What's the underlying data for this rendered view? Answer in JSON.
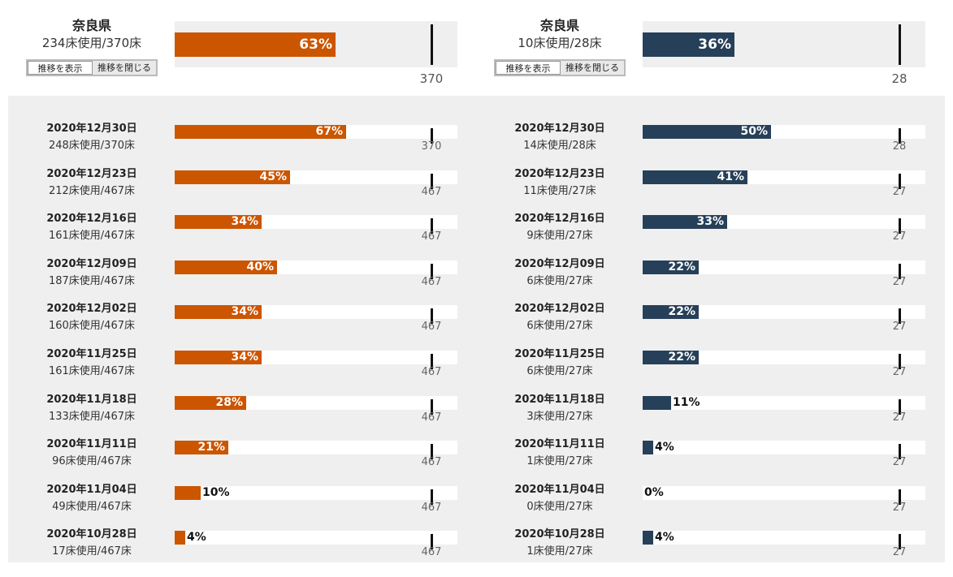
{
  "buttons": {
    "show": "推移を表示",
    "close": "推移を閉じる"
  },
  "chart_data": [
    {
      "type": "bar",
      "color": "#cc5500",
      "current": {
        "name": "奈良県",
        "count_text": "234床使用/370床",
        "percent": 63,
        "percent_label": "63%",
        "max_label": "370"
      },
      "history": [
        {
          "date": "2020年12月30日",
          "count_text": "248床使用/370床",
          "percent": 67,
          "percent_label": "67%",
          "max_label": "370"
        },
        {
          "date": "2020年12月23日",
          "count_text": "212床使用/467床",
          "percent": 45,
          "percent_label": "45%",
          "max_label": "467"
        },
        {
          "date": "2020年12月16日",
          "count_text": "161床使用/467床",
          "percent": 34,
          "percent_label": "34%",
          "max_label": "467"
        },
        {
          "date": "2020年12月09日",
          "count_text": "187床使用/467床",
          "percent": 40,
          "percent_label": "40%",
          "max_label": "467"
        },
        {
          "date": "2020年12月02日",
          "count_text": "160床使用/467床",
          "percent": 34,
          "percent_label": "34%",
          "max_label": "467"
        },
        {
          "date": "2020年11月25日",
          "count_text": "161床使用/467床",
          "percent": 34,
          "percent_label": "34%",
          "max_label": "467"
        },
        {
          "date": "2020年11月18日",
          "count_text": "133床使用/467床",
          "percent": 28,
          "percent_label": "28%",
          "max_label": "467"
        },
        {
          "date": "2020年11月11日",
          "count_text": "96床使用/467床",
          "percent": 21,
          "percent_label": "21%",
          "max_label": "467"
        },
        {
          "date": "2020年11月04日",
          "count_text": "49床使用/467床",
          "percent": 10,
          "percent_label": "10%",
          "max_label": "467"
        },
        {
          "date": "2020年10月28日",
          "count_text": "17床使用/467床",
          "percent": 4,
          "percent_label": "4%",
          "max_label": "467"
        }
      ]
    },
    {
      "type": "bar",
      "color": "#274059",
      "current": {
        "name": "奈良県",
        "count_text": "10床使用/28床",
        "percent": 36,
        "percent_label": "36%",
        "max_label": "28"
      },
      "history": [
        {
          "date": "2020年12月30日",
          "count_text": "14床使用/28床",
          "percent": 50,
          "percent_label": "50%",
          "max_label": "28"
        },
        {
          "date": "2020年12月23日",
          "count_text": "11床使用/27床",
          "percent": 41,
          "percent_label": "41%",
          "max_label": "27"
        },
        {
          "date": "2020年12月16日",
          "count_text": "9床使用/27床",
          "percent": 33,
          "percent_label": "33%",
          "max_label": "27"
        },
        {
          "date": "2020年12月09日",
          "count_text": "6床使用/27床",
          "percent": 22,
          "percent_label": "22%",
          "max_label": "27"
        },
        {
          "date": "2020年12月02日",
          "count_text": "6床使用/27床",
          "percent": 22,
          "percent_label": "22%",
          "max_label": "27"
        },
        {
          "date": "2020年11月25日",
          "count_text": "6床使用/27床",
          "percent": 22,
          "percent_label": "22%",
          "max_label": "27"
        },
        {
          "date": "2020年11月18日",
          "count_text": "3床使用/27床",
          "percent": 11,
          "percent_label": "11%",
          "max_label": "27"
        },
        {
          "date": "2020年11月11日",
          "count_text": "1床使用/27床",
          "percent": 4,
          "percent_label": "4%",
          "max_label": "27"
        },
        {
          "date": "2020年11月04日",
          "count_text": "0床使用/27床",
          "percent": 0,
          "percent_label": "0%",
          "max_label": "27"
        },
        {
          "date": "2020年10月28日",
          "count_text": "1床使用/27床",
          "percent": 4,
          "percent_label": "4%",
          "max_label": "27"
        }
      ]
    }
  ]
}
